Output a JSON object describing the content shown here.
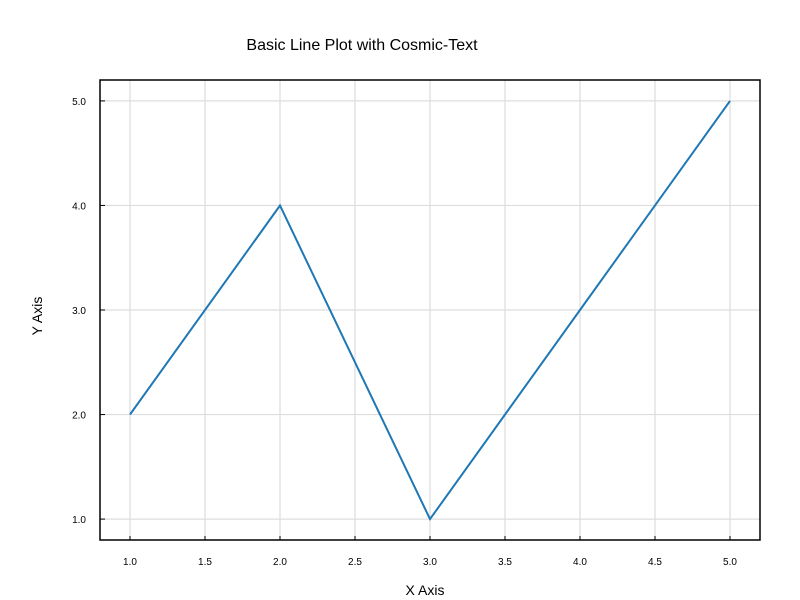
{
  "chart_data": {
    "type": "line",
    "title": "Basic Line Plot with Cosmic-Text",
    "xlabel": "X Axis",
    "ylabel": "Y Axis",
    "xlim": [
      0.8,
      5.2
    ],
    "ylim": [
      0.8,
      5.2
    ],
    "xticks": [
      1.0,
      1.5,
      2.0,
      2.5,
      3.0,
      3.5,
      4.0,
      4.5,
      5.0
    ],
    "xtick_labels": [
      "1.0",
      "1.5",
      "2.0",
      "2.5",
      "3.0",
      "3.5",
      "4.0",
      "4.5",
      "5.0"
    ],
    "yticks": [
      1.0,
      2.0,
      3.0,
      4.0,
      5.0
    ],
    "ytick_labels": [
      "1.0",
      "2.0",
      "3.0",
      "4.0",
      "5.0"
    ],
    "grid": true,
    "legend": false,
    "series": [
      {
        "x": [
          1,
          2,
          3,
          4,
          5
        ],
        "y": [
          2,
          4,
          1,
          3,
          5
        ],
        "color": "#1f77b4"
      }
    ]
  }
}
